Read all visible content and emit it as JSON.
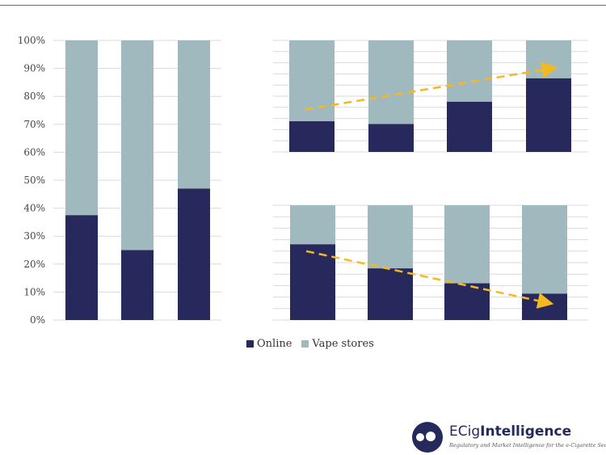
{
  "colors": {
    "online": "#27285c",
    "vape_stores": "#a0b9be",
    "trend": "#f5b820",
    "grid": "#d9d9d9"
  },
  "legend": {
    "online": "Online",
    "vape_stores": "Vape stores"
  },
  "brand": {
    "name_prefix": "ECig",
    "name_bold": "Intelligence",
    "tagline": "Regulatory and Market Intelligence for the e-Cigarette Sector"
  },
  "chart_data": [
    {
      "type": "bar",
      "stacked": true,
      "yticks": [
        "0%",
        "10%",
        "20%",
        "30%",
        "40%",
        "50%",
        "60%",
        "70%",
        "80%",
        "90%",
        "100%"
      ],
      "ylim": [
        0,
        100
      ],
      "series": [
        {
          "name": "Online",
          "values": [
            37.5,
            25,
            47
          ]
        },
        {
          "name": "Vape stores",
          "values": [
            62.5,
            75,
            53
          ]
        }
      ]
    },
    {
      "type": "bar",
      "stacked": true,
      "series": [
        {
          "name": "Online",
          "values": [
            27.5,
            25,
            45,
            66
          ]
        },
        {
          "name": "Vape stores",
          "values": [
            72.5,
            75,
            55,
            34
          ]
        }
      ],
      "trend": "up"
    },
    {
      "type": "bar",
      "stacked": true,
      "series": [
        {
          "name": "Online",
          "values": [
            66,
            45,
            32,
            23
          ]
        },
        {
          "name": "Vape stores",
          "values": [
            34,
            55,
            68,
            77
          ]
        }
      ],
      "trend": "down"
    }
  ]
}
